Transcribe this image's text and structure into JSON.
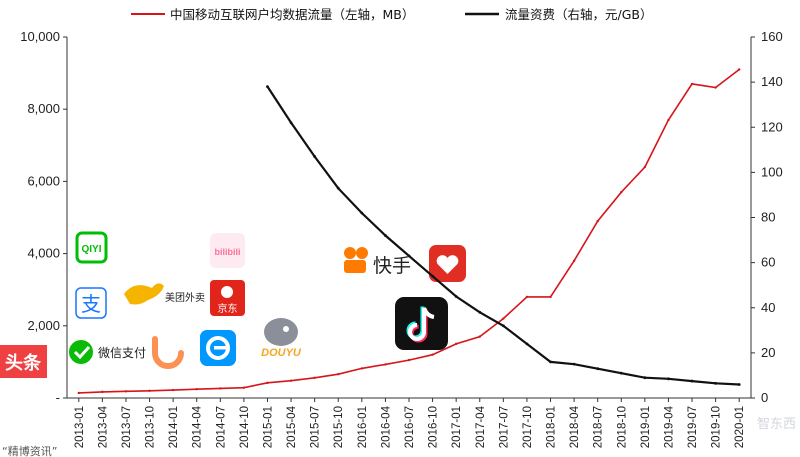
{
  "chart_data": {
    "type": "line",
    "legend_position": "top",
    "grid": false,
    "series": [
      {
        "name": "中国移动互联网户均数据流量（左轴，MB）",
        "axis": "left",
        "color": "#d6151b",
        "x": [
          "2013-01",
          "2013-04",
          "2013-07",
          "2013-10",
          "2014-01",
          "2014-04",
          "2014-07",
          "2014-10",
          "2015-01",
          "2015-04",
          "2015-07",
          "2015-10",
          "2016-01",
          "2016-04",
          "2016-07",
          "2016-10",
          "2017-01",
          "2017-04",
          "2017-07",
          "2017-10",
          "2018-01",
          "2018-04",
          "2018-07",
          "2018-10",
          "2019-01",
          "2019-04",
          "2019-07",
          "2019-10",
          "2020-01"
        ],
        "values": [
          140,
          170,
          185,
          200,
          220,
          245,
          265,
          285,
          420,
          480,
          560,
          660,
          820,
          930,
          1050,
          1200,
          1500,
          1700,
          2200,
          2800,
          2800,
          3800,
          4900,
          5700,
          6400,
          7700,
          8700,
          8600,
          9100
        ]
      },
      {
        "name": "流量资费（右轴，元/GB）",
        "axis": "right",
        "color": "#111111",
        "x": [
          "2015-01",
          "2015-04",
          "2015-07",
          "2015-10",
          "2016-01",
          "2016-04",
          "2016-07",
          "2016-10",
          "2017-01",
          "2017-04",
          "2017-07",
          "2017-10",
          "2018-01",
          "2018-04",
          "2018-07",
          "2018-10",
          "2019-01",
          "2019-04",
          "2019-07",
          "2019-10",
          "2020-01"
        ],
        "values": [
          138,
          122,
          107,
          93,
          82,
          72,
          63,
          54,
          45,
          38,
          32,
          24,
          16,
          15,
          13,
          11,
          9,
          8.5,
          7.5,
          6.5,
          6
        ]
      }
    ],
    "x_tick_labels": [
      "2013-01",
      "2013-04",
      "2013-07",
      "2013-10",
      "2014-01",
      "2014-04",
      "2014-07",
      "2014-10",
      "2015-01",
      "2015-04",
      "2015-07",
      "2015-10",
      "2016-01",
      "2016-04",
      "2016-07",
      "2016-10",
      "2017-01",
      "2017-04",
      "2017-07",
      "2017-10",
      "2018-01",
      "2018-04",
      "2018-07",
      "2018-10",
      "2019-01",
      "2019-04",
      "2019-07",
      "2019-10",
      "2020-01"
    ],
    "y_left": {
      "min": 0,
      "max": 10000,
      "ticks": [
        "-",
        "2,000",
        "4,000",
        "6,000",
        "8,000",
        "10,000"
      ],
      "tick_values": [
        0,
        2000,
        4000,
        6000,
        8000,
        10000
      ]
    },
    "y_right": {
      "min": 0,
      "max": 160,
      "ticks": [
        "0",
        "20",
        "40",
        "60",
        "80",
        "100",
        "120",
        "140",
        "160"
      ],
      "tick_values": [
        0,
        20,
        40,
        60,
        80,
        100,
        120,
        140,
        160
      ]
    }
  },
  "app_logos": [
    {
      "id": "iqiyi",
      "label": "QIYI",
      "color": "#00be06",
      "icon": "iqiyi-icon"
    },
    {
      "id": "bilibili",
      "label": "bilibili",
      "color": "#fb7299",
      "icon": "bilibili-icon"
    },
    {
      "id": "alipay",
      "label": "支",
      "color": "#1677ff",
      "icon": "alipay-icon"
    },
    {
      "id": "meituan",
      "label": "美团外卖",
      "color": "#f5b400",
      "icon": "meituan-icon"
    },
    {
      "id": "jd",
      "label": "京东",
      "color": "#e1251b",
      "icon": "jd-icon"
    },
    {
      "id": "wechatpay",
      "label": "微信支付",
      "color": "#09bb07",
      "icon": "wechat-pay-icon"
    },
    {
      "id": "didi",
      "label": "",
      "color": "#fc9153",
      "icon": "didi-icon"
    },
    {
      "id": "eleme",
      "label": "",
      "color": "#0097ff",
      "icon": "eleme-icon"
    },
    {
      "id": "douyu",
      "label": "DOUYU",
      "color": "#f5a623",
      "icon": "douyu-icon"
    },
    {
      "id": "kuaishou",
      "label": "快手",
      "color": "#ff7a00",
      "icon": "kuaishou-icon"
    },
    {
      "id": "pinduoduo",
      "label": "",
      "color": "#e02e24",
      "icon": "pinduoduo-icon"
    },
    {
      "id": "tiktok",
      "label": "",
      "color": "#111111",
      "icon": "tiktok-icon"
    },
    {
      "id": "toutiao",
      "label": "头条",
      "color": "#f04142",
      "icon": "toutiao-icon"
    }
  ],
  "source_note": "“精博资讯”",
  "watermark": "智东西"
}
